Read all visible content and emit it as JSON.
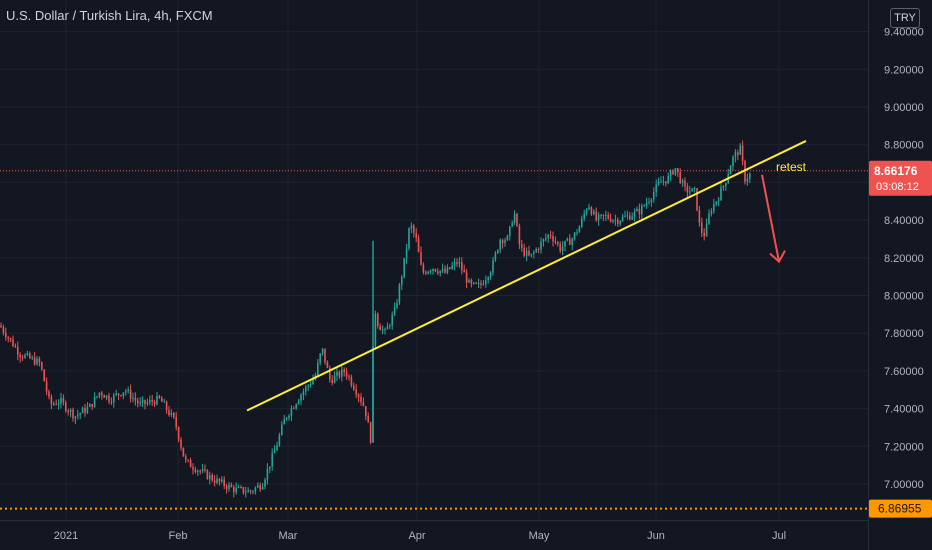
{
  "header": {
    "title": "U.S. Dollar / Turkish Lira, 4h, FXCM",
    "currency_button": "TRY"
  },
  "chart_data": {
    "type": "candlestick",
    "x_ticks": [
      "2021",
      "Feb",
      "Mar",
      "Apr",
      "May",
      "Jun",
      "Jul"
    ],
    "y_ticks": [
      7.0,
      7.2,
      7.4,
      7.6,
      7.8,
      8.0,
      8.2,
      8.4,
      8.6,
      8.8,
      9.0,
      9.2,
      9.4
    ],
    "y_tick_labels": [
      "7.00000",
      "7.20000",
      "7.40000",
      "7.60000",
      "7.80000",
      "8.00000",
      "8.20000",
      "8.40000",
      "8.60000",
      "8.80000",
      "9.00000",
      "9.20000",
      "9.40000"
    ],
    "y_range": [
      6.86,
      9.47
    ],
    "current_price": {
      "value": 8.66176,
      "label": "8.66176",
      "countdown": "03:08:12",
      "color": "#ef5350"
    },
    "support_level": {
      "value": 6.86955,
      "label": "6.86955",
      "color": "#ff9800"
    },
    "trendline": {
      "from": {
        "date": "Feb 23",
        "price": 7.39
      },
      "to": {
        "date": "Jun 29",
        "price": 8.82
      },
      "color": "#ffeb3b"
    },
    "annotation": {
      "text": "retest",
      "color": "#ffeb3b"
    },
    "projection_arrow": {
      "from_price": 8.64,
      "to_price": 8.18,
      "color": "#ef5350"
    },
    "path_points": [
      [
        0,
        7.84
      ],
      [
        20,
        7.69
      ],
      [
        40,
        7.64
      ],
      [
        50,
        7.42
      ],
      [
        60,
        7.44
      ],
      [
        75,
        7.36
      ],
      [
        90,
        7.41
      ],
      [
        100,
        7.49
      ],
      [
        110,
        7.45
      ],
      [
        125,
        7.5
      ],
      [
        140,
        7.42
      ],
      [
        160,
        7.45
      ],
      [
        175,
        7.33
      ],
      [
        185,
        7.12
      ],
      [
        200,
        7.07
      ],
      [
        215,
        7.02
      ],
      [
        235,
        6.97
      ],
      [
        250,
        6.96
      ],
      [
        262,
        7.0
      ],
      [
        275,
        7.18
      ],
      [
        285,
        7.35
      ],
      [
        300,
        7.47
      ],
      [
        315,
        7.57
      ],
      [
        322,
        7.72
      ],
      [
        330,
        7.55
      ],
      [
        345,
        7.6
      ],
      [
        358,
        7.48
      ],
      [
        365,
        7.4
      ],
      [
        371,
        7.23
      ],
      [
        374,
        7.95
      ],
      [
        378,
        7.85
      ],
      [
        385,
        7.8
      ],
      [
        395,
        7.92
      ],
      [
        405,
        8.2
      ],
      [
        410,
        8.38
      ],
      [
        416,
        8.3
      ],
      [
        422,
        8.12
      ],
      [
        432,
        8.15
      ],
      [
        445,
        8.12
      ],
      [
        458,
        8.18
      ],
      [
        470,
        8.05
      ],
      [
        480,
        8.05
      ],
      [
        492,
        8.15
      ],
      [
        500,
        8.3
      ],
      [
        508,
        8.3
      ],
      [
        514,
        8.45
      ],
      [
        520,
        8.25
      ],
      [
        530,
        8.2
      ],
      [
        540,
        8.27
      ],
      [
        550,
        8.33
      ],
      [
        560,
        8.25
      ],
      [
        572,
        8.3
      ],
      [
        580,
        8.37
      ],
      [
        588,
        8.49
      ],
      [
        596,
        8.4
      ],
      [
        606,
        8.42
      ],
      [
        616,
        8.4
      ],
      [
        628,
        8.42
      ],
      [
        640,
        8.45
      ],
      [
        650,
        8.52
      ],
      [
        660,
        8.6
      ],
      [
        668,
        8.62
      ],
      [
        675,
        8.68
      ],
      [
        685,
        8.56
      ],
      [
        695,
        8.55
      ],
      [
        700,
        8.35
      ],
      [
        705,
        8.32
      ],
      [
        710,
        8.45
      ],
      [
        718,
        8.52
      ],
      [
        725,
        8.6
      ],
      [
        732,
        8.72
      ],
      [
        740,
        8.78
      ],
      [
        745,
        8.62
      ],
      [
        752,
        8.65
      ]
    ]
  }
}
